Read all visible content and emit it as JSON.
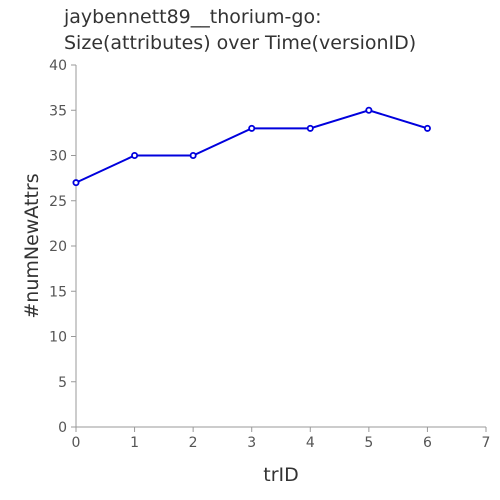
{
  "chart_data": {
    "type": "line",
    "title_lines": [
      "jaybennett89__thorium-go:",
      "Size(attributes) over Time(versionID)"
    ],
    "xlabel": "trID",
    "ylabel": "#numNewAttrs",
    "xlim": [
      0,
      7
    ],
    "ylim": [
      0,
      40
    ],
    "x_ticks": [
      "0",
      "1",
      "2",
      "3",
      "4",
      "5",
      "6",
      "7"
    ],
    "y_ticks": [
      "0",
      "5",
      "10",
      "15",
      "20",
      "25",
      "30",
      "35",
      "40"
    ],
    "x": [
      0,
      1,
      2,
      3,
      4,
      5,
      6
    ],
    "values": [
      27,
      30,
      30,
      33,
      33,
      35,
      33
    ],
    "grid": false,
    "legend": "none",
    "line_color": "#0000dd"
  }
}
